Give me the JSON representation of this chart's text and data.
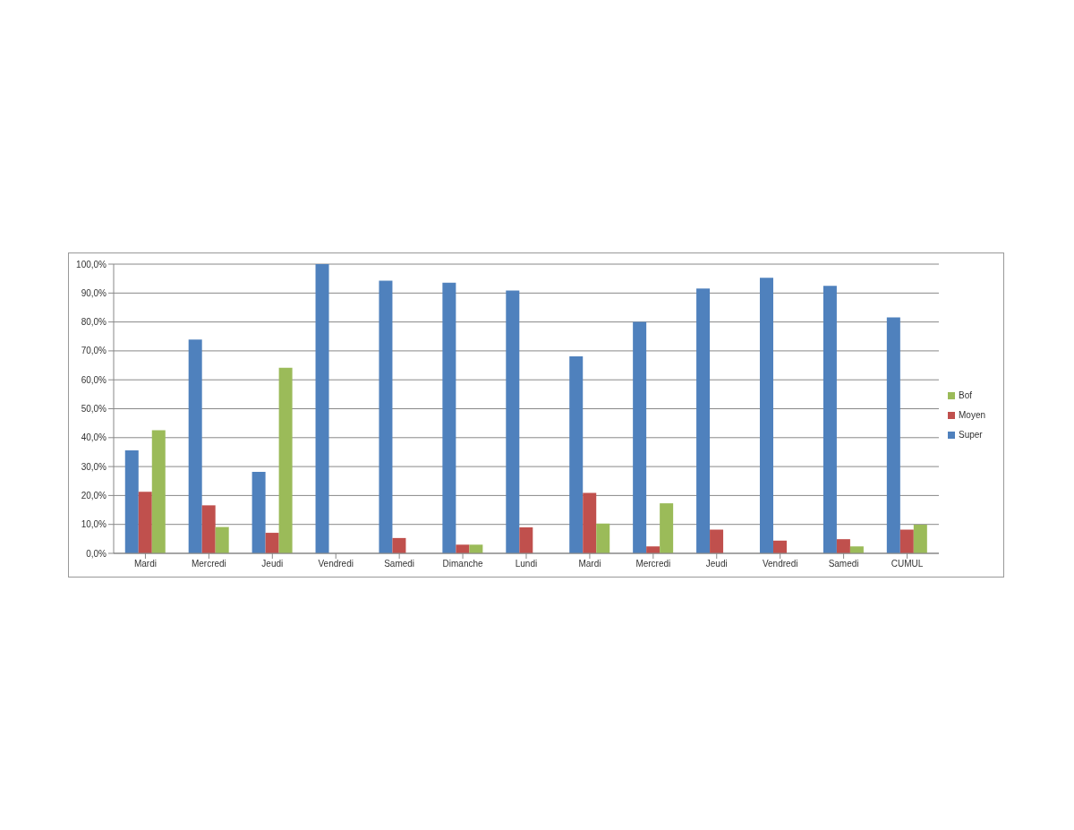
{
  "chart_data": {
    "type": "bar",
    "categories": [
      "Mardi",
      "Mercredi",
      "Jeudi",
      "Vendredi",
      "Samedi",
      "Dimanche",
      "Lundi",
      "Mardi",
      "Mercredi",
      "Jeudi",
      "Vendredi",
      "Samedi",
      "CUMUL"
    ],
    "series": [
      {
        "name": "Super",
        "color": "#4f81bd",
        "values": [
          35.6,
          73.9,
          28.2,
          100,
          94.3,
          93.6,
          90.9,
          68.1,
          80.0,
          91.6,
          95.3,
          92.5,
          81.6
        ]
      },
      {
        "name": "Moyen",
        "color": "#c0504d",
        "values": [
          21.3,
          16.6,
          7.1,
          0,
          5.3,
          3.0,
          9.0,
          20.9,
          2.4,
          8.2,
          4.4,
          4.9,
          8.2
        ]
      },
      {
        "name": "Bof",
        "color": "#9bbb59",
        "values": [
          42.6,
          9.1,
          64.2,
          0,
          0,
          3.0,
          0,
          10.3,
          17.3,
          0,
          0,
          2.4,
          9.9
        ]
      }
    ],
    "ylim": [
      0,
      100
    ],
    "yticks": [
      {
        "value": 0,
        "label": "0,0%"
      },
      {
        "value": 10,
        "label": "10,0%"
      },
      {
        "value": 20,
        "label": "20,0%"
      },
      {
        "value": 30,
        "label": "30,0%"
      },
      {
        "value": 40,
        "label": "40,0%"
      },
      {
        "value": 50,
        "label": "50,0%"
      },
      {
        "value": 60,
        "label": "60,0%"
      },
      {
        "value": 70,
        "label": "70,0%"
      },
      {
        "value": 80,
        "label": "80,0%"
      },
      {
        "value": 90,
        "label": "90,0%"
      },
      {
        "value": 100,
        "label": "100,0%"
      }
    ],
    "grid": "y",
    "legend": "right"
  }
}
